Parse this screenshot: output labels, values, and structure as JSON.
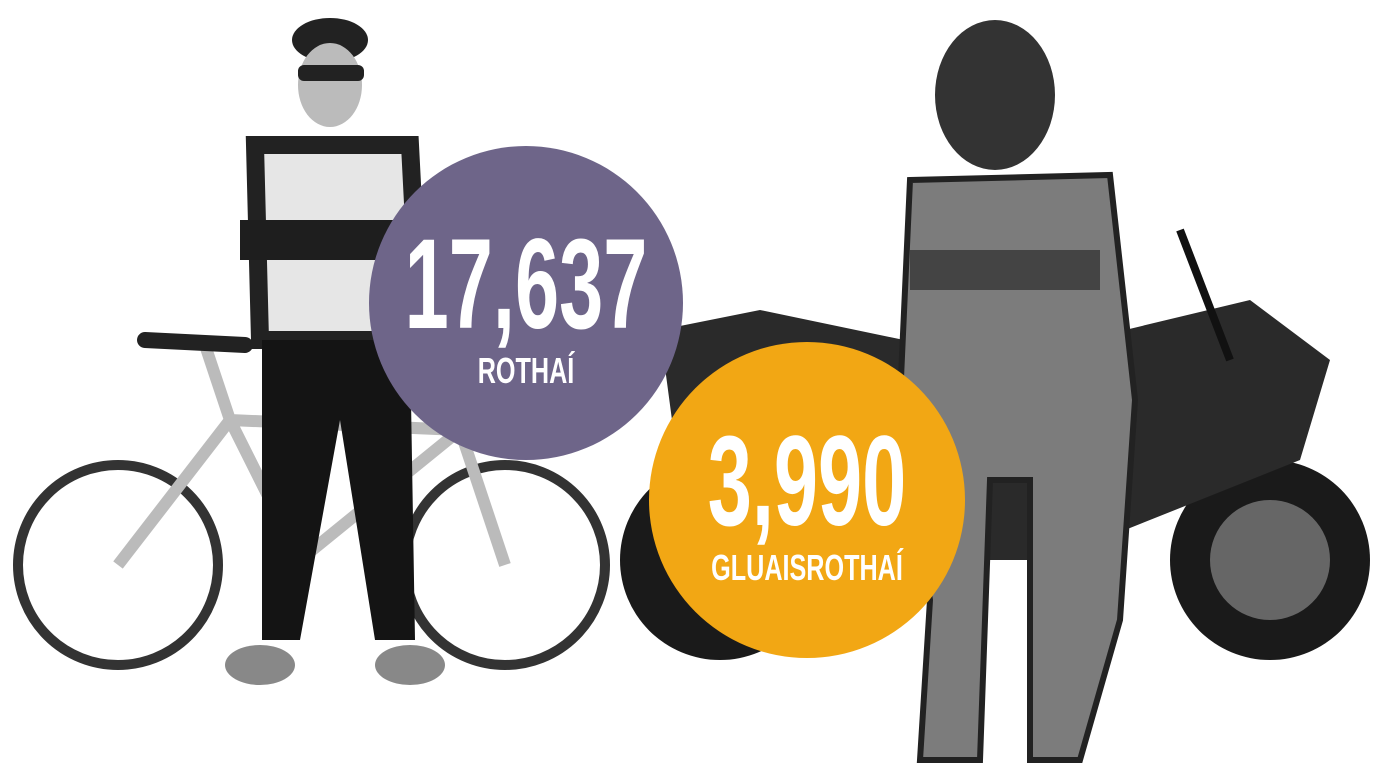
{
  "stats": [
    {
      "value": "17,637",
      "label": "ROTHAÍ",
      "color": "#6e6589"
    },
    {
      "value": "3,990",
      "label": "GLUAISROTHAÍ",
      "color": "#f2a714"
    }
  ]
}
